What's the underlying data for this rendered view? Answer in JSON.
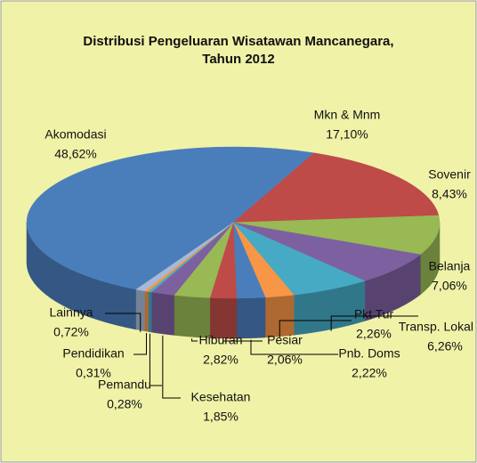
{
  "chart_data": {
    "type": "pie3d",
    "title": [
      "Distribusi Pengeluaran Wisatawan Mancanegara,",
      "Tahun 2012"
    ],
    "categories": [
      "Akomodasi",
      "Mkn & Mnm",
      "Sovenir",
      "Belanja",
      "Transp. Lokal",
      "Pkt Tur",
      "Pnb. Doms",
      "Pesiar",
      "Hiburan",
      "Kesehatan",
      "Pemandu",
      "Pendidikan",
      "Lainnya"
    ],
    "values": [
      48.62,
      17.1,
      8.43,
      7.06,
      6.26,
      2.26,
      2.22,
      2.06,
      2.82,
      1.85,
      0.28,
      0.31,
      0.72
    ],
    "value_labels": [
      "48,62%",
      "17,10%",
      "8,43%",
      "7,06%",
      "6,26%",
      "2,26%",
      "2,22%",
      "2,06%",
      "2,82%",
      "1,85%",
      "0,28%",
      "0,31%",
      "0,72%"
    ],
    "colors": [
      "#4a7ebb",
      "#be4b48",
      "#98b954",
      "#7d60a0",
      "#46aac5",
      "#f79646",
      "#4a7ebb",
      "#be4b48",
      "#98b954",
      "#7d60a0",
      "#46aac5",
      "#f79646",
      "#a5b9d8"
    ]
  }
}
